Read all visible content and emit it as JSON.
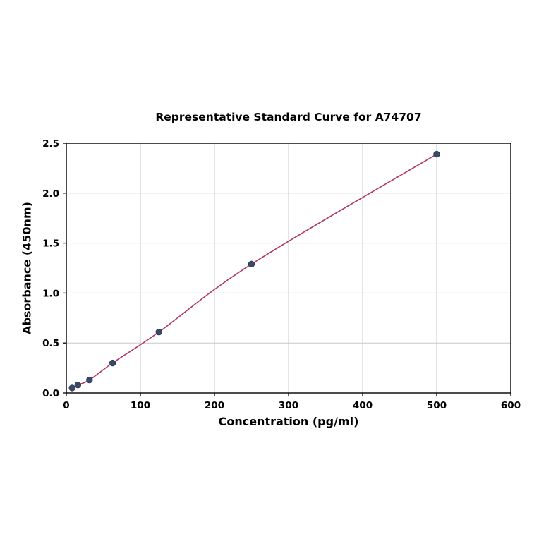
{
  "chart_data": {
    "type": "line",
    "title": "Representative Standard Curve for A74707",
    "xlabel": "Concentration (pg/ml)",
    "ylabel": "Absorbance (450nm)",
    "xlim": [
      0,
      600
    ],
    "ylim": [
      0,
      2.5
    ],
    "x_ticks": [
      0,
      100,
      200,
      300,
      400,
      500,
      600
    ],
    "x_tick_labels": [
      "0",
      "100",
      "200",
      "300",
      "400",
      "500",
      "600"
    ],
    "y_ticks": [
      0.0,
      0.5,
      1.0,
      1.5,
      2.0,
      2.5
    ],
    "y_tick_labels": [
      "0.0",
      "0.5",
      "1.0",
      "1.5",
      "2.0",
      "2.5"
    ],
    "x": [
      7.8,
      15.6,
      31.25,
      62.5,
      125,
      250,
      500
    ],
    "y": [
      0.05,
      0.08,
      0.13,
      0.3,
      0.61,
      1.29,
      2.39
    ],
    "grid": true,
    "grid_color": "#c9c9c9",
    "line_color": "#b13566",
    "point_color": "#3b4a6b",
    "point_edge_color": "#2e3a57",
    "axis_color": "#000000",
    "legend": "none"
  }
}
